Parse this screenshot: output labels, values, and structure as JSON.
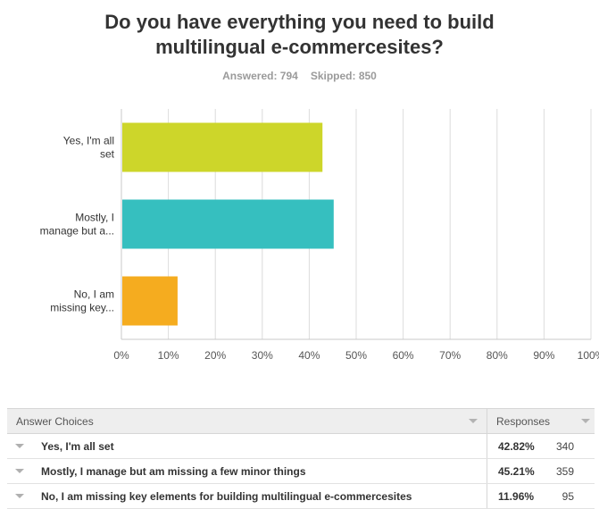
{
  "question": {
    "title_line1": "Do you have everything you need to build",
    "title_line2": "multilingual e-commercesites?",
    "answered": "Answered: 794",
    "skipped": "Skipped: 850"
  },
  "colors": {
    "bar_colors": [
      "#cdd62a",
      "#36bfbf",
      "#f5ac1f"
    ],
    "grid": "#dcdcdc",
    "axis": "#c8c8c8",
    "plot_bg": "#ffffff"
  },
  "chart_data": {
    "type": "bar",
    "orientation": "horizontal",
    "categories": [
      "Yes, I'm all set",
      "Mostly, I manage but a...",
      "No, I am missing key..."
    ],
    "category_lines": [
      [
        "Yes, I'm all",
        "set"
      ],
      [
        "Mostly, I",
        "manage but a..."
      ],
      [
        "No, I am",
        "missing key..."
      ]
    ],
    "values": [
      42.82,
      45.21,
      11.96
    ],
    "xlim": [
      0,
      100
    ],
    "x_ticks": [
      "0%",
      "10%",
      "20%",
      "30%",
      "40%",
      "50%",
      "60%",
      "70%",
      "80%",
      "90%",
      "100%"
    ],
    "grid": true
  },
  "table": {
    "header_choices": "Answer Choices",
    "header_responses": "Responses",
    "rows": [
      {
        "choice": "Yes, I'm all set",
        "percent": "42.82%",
        "count": "340"
      },
      {
        "choice": "Mostly, I manage but am missing a few minor things",
        "percent": "45.21%",
        "count": "359"
      },
      {
        "choice": "No, I am missing key elements for building multilingual e-commercesites",
        "percent": "11.96%",
        "count": "95"
      }
    ]
  }
}
